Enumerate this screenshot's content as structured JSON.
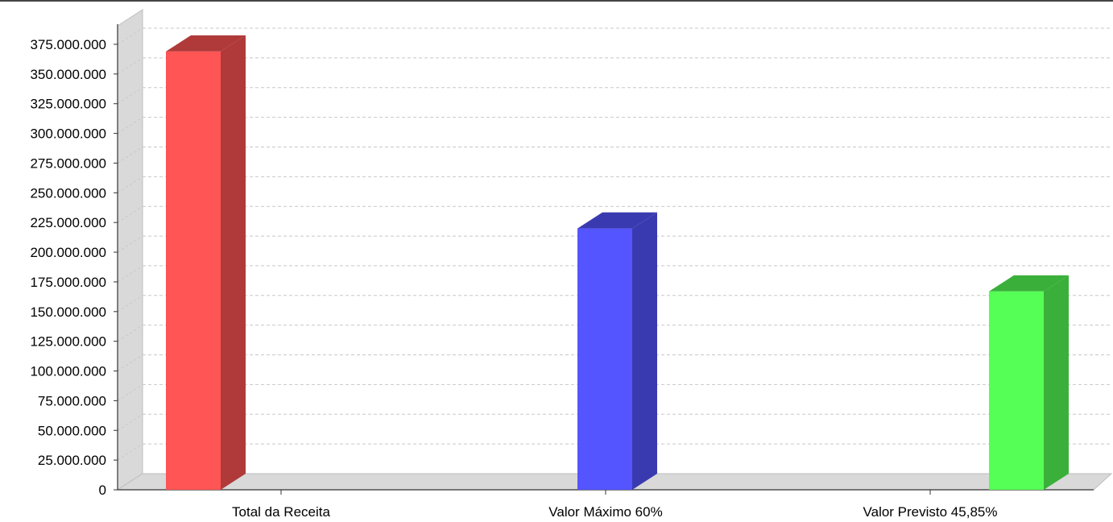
{
  "chart_data": {
    "type": "bar",
    "title": "",
    "xlabel": "",
    "ylabel": "",
    "ylim": [
      0,
      375000000
    ],
    "y_tick_step": 25000000,
    "y_tick_labels": [
      "0",
      "25.000.000",
      "50.000.000",
      "75.000.000",
      "100.000.000",
      "125.000.000",
      "150.000.000",
      "175.000.000",
      "200.000.000",
      "225.000.000",
      "250.000.000",
      "275.000.000",
      "300.000.000",
      "325.000.000",
      "350.000.000",
      "375.000.000"
    ],
    "categories": [
      "Total da Receita",
      "Valor Máximo 60%",
      "Valor Previsto 45,85%"
    ],
    "values": [
      369000000,
      220000000,
      167000000
    ],
    "colors": [
      "#ff5555",
      "#5555ff",
      "#55ff55"
    ],
    "side_colors": [
      "#b03a3a",
      "#3a3ab0",
      "#3ab03a"
    ],
    "grid": true,
    "style": "3d"
  }
}
